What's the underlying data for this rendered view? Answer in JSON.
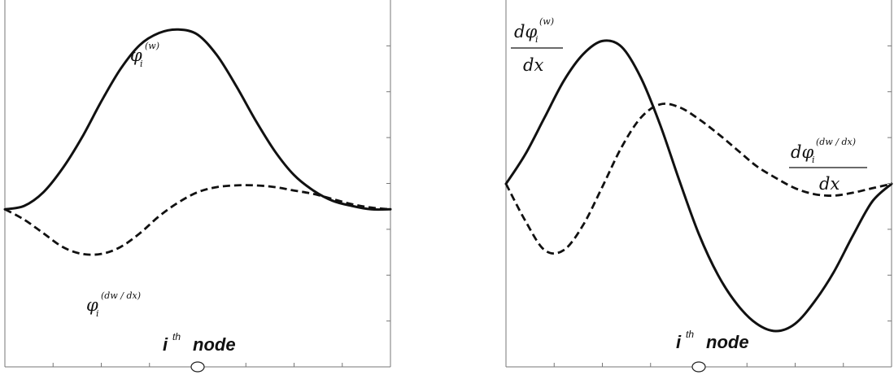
{
  "chart_data": [
    {
      "type": "line",
      "x": [
        0,
        0.05,
        0.1,
        0.15,
        0.2,
        0.25,
        0.3,
        0.35,
        0.4,
        0.45,
        0.5,
        0.55,
        0.6,
        0.65,
        0.7,
        0.75,
        0.8,
        0.85,
        0.9,
        0.95,
        1
      ],
      "ylim": [
        -1,
        1
      ],
      "grid": false,
      "series": [
        {
          "style": "solid",
          "values": [
            -0.08,
            -0.06,
            0.02,
            0.16,
            0.34,
            0.55,
            0.74,
            0.88,
            0.95,
            0.97,
            0.94,
            0.82,
            0.64,
            0.44,
            0.26,
            0.12,
            0.03,
            -0.03,
            -0.06,
            -0.08,
            -0.08
          ]
        },
        {
          "style": "dashed",
          "values": [
            -0.08,
            -0.14,
            -0.22,
            -0.3,
            -0.34,
            -0.34,
            -0.3,
            -0.22,
            -0.12,
            -0.04,
            0.02,
            0.05,
            0.06,
            0.06,
            0.05,
            0.03,
            0.01,
            -0.02,
            -0.05,
            -0.07,
            -0.08
          ]
        }
      ],
      "annotations": {
        "solid_label": {
          "main": "φ",
          "sub": "i",
          "sup": "(w)"
        },
        "dashed_label": {
          "main": "φ",
          "sub": "i",
          "sup": "(dw / dx)"
        },
        "node_label": {
          "i": "i",
          "th": "th",
          "node": "node"
        }
      }
    },
    {
      "type": "line",
      "x": [
        0,
        0.05,
        0.1,
        0.15,
        0.2,
        0.25,
        0.3,
        0.35,
        0.4,
        0.45,
        0.5,
        0.55,
        0.6,
        0.65,
        0.7,
        0.75,
        0.8,
        0.85,
        0.9,
        0.95,
        1
      ],
      "ylim": [
        -1,
        1
      ],
      "grid": false,
      "series": [
        {
          "style": "solid",
          "values": [
            0.0,
            0.2,
            0.45,
            0.7,
            0.88,
            0.97,
            0.93,
            0.72,
            0.4,
            0.02,
            -0.34,
            -0.62,
            -0.82,
            -0.95,
            -1.0,
            -0.95,
            -0.8,
            -0.6,
            -0.35,
            -0.12,
            0.0
          ]
        },
        {
          "style": "dashed",
          "values": [
            0.0,
            -0.25,
            -0.45,
            -0.45,
            -0.28,
            -0.02,
            0.25,
            0.45,
            0.54,
            0.52,
            0.44,
            0.34,
            0.23,
            0.12,
            0.04,
            -0.03,
            -0.07,
            -0.08,
            -0.06,
            -0.03,
            0.0
          ]
        }
      ],
      "annotations": {
        "solid_label": {
          "num": "dφ",
          "sub": "i",
          "sup": "(w)",
          "den": "dx"
        },
        "dashed_label": {
          "num": "dφ",
          "sub": "i",
          "sup": "(dw / dx)",
          "den": "dx"
        },
        "node_label": {
          "i": "i",
          "th": "th",
          "node": "node"
        }
      }
    }
  ]
}
